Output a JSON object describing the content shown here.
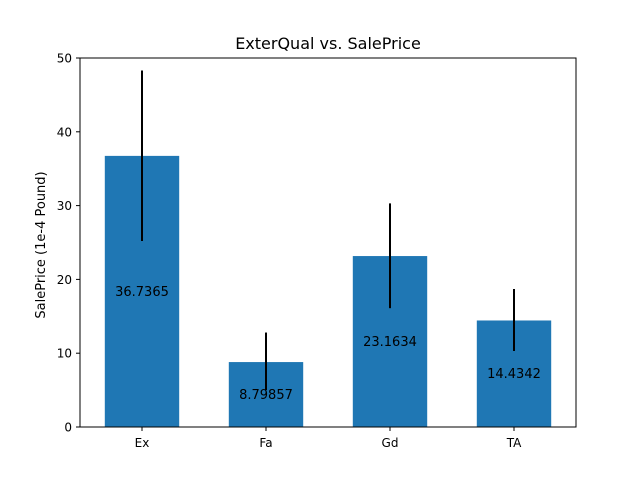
{
  "chart_data": {
    "type": "bar",
    "title": "ExterQual vs. SalePrice",
    "xlabel": "",
    "ylabel": "SalePrice (1e-4 Pound)",
    "categories": [
      "Ex",
      "Fa",
      "Gd",
      "TA"
    ],
    "values": [
      36.7365,
      8.79857,
      23.1634,
      14.4342
    ],
    "value_labels": [
      "36.7365",
      "8.79857",
      "23.1634",
      "14.4342"
    ],
    "error_low": [
      25.2,
      5.0,
      16.1,
      10.3
    ],
    "error_high": [
      48.3,
      12.8,
      30.3,
      18.7
    ],
    "ylim": [
      0,
      50
    ],
    "yticks": [
      0,
      10,
      20,
      30,
      40,
      50
    ],
    "grid": false,
    "colors": {
      "bar": "#1f77b4",
      "errorbar": "#000000",
      "axes": "#000000"
    }
  }
}
